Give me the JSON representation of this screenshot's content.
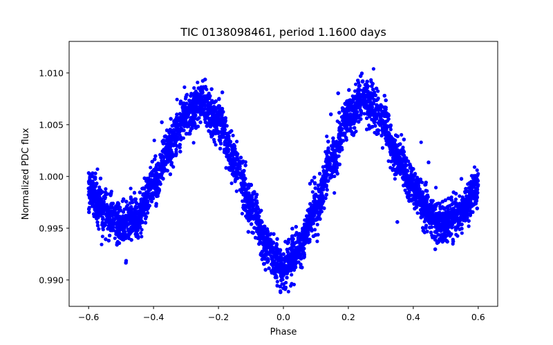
{
  "chart_data": {
    "type": "scatter",
    "title": "TIC 0138098461, period 1.1600 days",
    "xlabel": "Phase",
    "ylabel": "Normalized PDC flux",
    "xlim": [
      -0.66,
      0.66
    ],
    "ylim": [
      0.98745,
      1.01305
    ],
    "x_ticks": [
      -0.6,
      -0.4,
      -0.2,
      0.0,
      0.2,
      0.4,
      0.6
    ],
    "x_tick_labels": [
      "−0.6",
      "−0.4",
      "−0.2",
      "0.0",
      "0.2",
      "0.4",
      "0.6"
    ],
    "y_ticks": [
      0.99,
      0.995,
      1.0,
      1.005,
      1.01
    ],
    "y_tick_labels": [
      "0.990",
      "0.995",
      "1.000",
      "1.005",
      "1.010"
    ],
    "grid": false,
    "marker_color": "#0000ff",
    "series": [
      {
        "x_range": [
          -0.6,
          0.6
        ],
        "model": "1 + 0.0018*cos(2*pi*(2x+0.5)) ... see trend points",
        "trend": {
          "x": [
            -0.6,
            -0.55,
            -0.5,
            -0.45,
            -0.4,
            -0.35,
            -0.3,
            -0.25,
            -0.2,
            -0.15,
            -0.1,
            -0.05,
            0.0,
            0.05,
            0.1,
            0.15,
            0.2,
            0.25,
            0.3,
            0.35,
            0.4,
            0.45,
            0.5,
            0.55,
            0.6
          ],
          "y": [
            0.9988,
            0.9965,
            0.9953,
            0.9962,
            0.9992,
            1.003,
            1.006,
            1.007,
            1.0055,
            1.0015,
            0.997,
            0.993,
            0.9912,
            0.993,
            0.997,
            1.0015,
            1.006,
            1.0075,
            1.006,
            1.002,
            0.999,
            0.9963,
            0.9953,
            0.9965,
            0.999
          ]
        },
        "scatter_half_width": 0.0018,
        "n_points": 14000
      }
    ]
  }
}
